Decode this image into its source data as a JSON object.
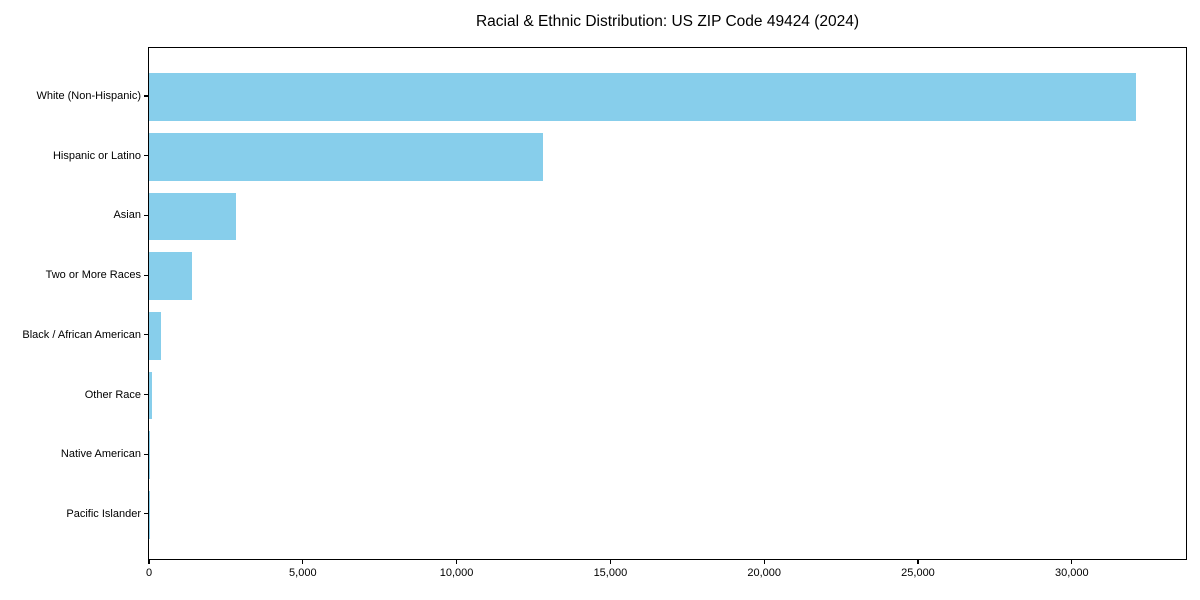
{
  "chart_data": {
    "type": "bar",
    "orientation": "horizontal",
    "title": "Racial & Ethnic Distribution: US ZIP Code 49424 (2024)",
    "xlabel": "",
    "ylabel": "",
    "categories": [
      "White (Non-Hispanic)",
      "Hispanic or Latino",
      "Asian",
      "Two or More Races",
      "Black / African American",
      "Other Race",
      "Native American",
      "Pacific Islander"
    ],
    "values": [
      32100,
      12800,
      2840,
      1400,
      400,
      110,
      40,
      10
    ],
    "xlim": [
      0,
      33700
    ],
    "x_ticks": [
      0,
      5000,
      10000,
      15000,
      20000,
      25000,
      30000
    ],
    "x_tick_labels": [
      "0",
      "5,000",
      "10,000",
      "15,000",
      "20,000",
      "25,000",
      "30,000"
    ],
    "bar_color": "#87CEEB",
    "spine_color": "#000000",
    "background_color": "#FFFFFF",
    "grid": false,
    "legend": "none"
  }
}
